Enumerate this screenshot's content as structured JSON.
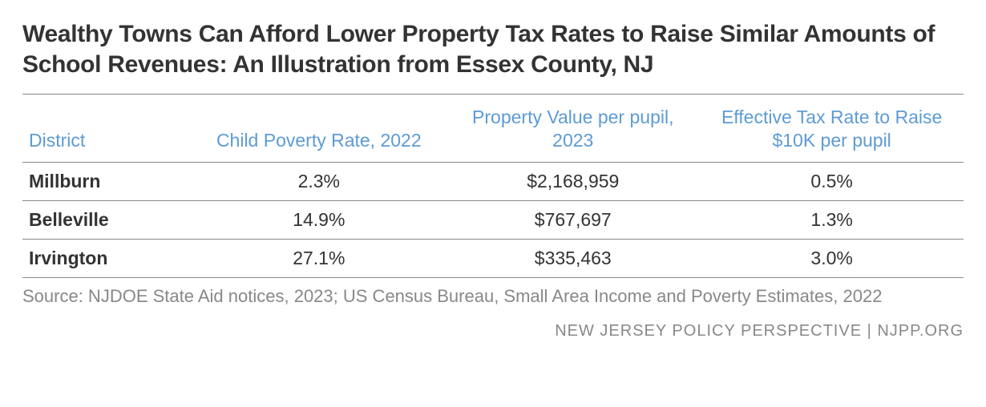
{
  "title": "Wealthy Towns Can Afford Lower Property Tax Rates to Raise Similar Amounts of School Revenues: An Illustration from Essex County, NJ",
  "table": {
    "columns": [
      {
        "key": "district",
        "label": "District",
        "align": "left"
      },
      {
        "key": "poverty",
        "label": "Child Poverty Rate, 2022",
        "align": "center"
      },
      {
        "key": "propval",
        "label": "Property Value per pupil, 2023",
        "align": "center"
      },
      {
        "key": "taxrate",
        "label": "Effective Tax Rate to Raise $10K per pupil",
        "align": "center"
      }
    ],
    "rows": [
      {
        "district": "Millburn",
        "poverty": "2.3%",
        "propval": "$2,168,959",
        "taxrate": "0.5%"
      },
      {
        "district": "Belleville",
        "poverty": "14.9%",
        "propval": "$767,697",
        "taxrate": "1.3%"
      },
      {
        "district": "Irvington",
        "poverty": "27.1%",
        "propval": "$335,463",
        "taxrate": "3.0%"
      }
    ],
    "header_color": "#5d9bd4",
    "header_fontsize": 23,
    "row_fontsize": 23,
    "border_color": "#888888",
    "district_fontweight": 700
  },
  "source": "Source:  NJDOE State Aid notices, 2023; US Census Bureau, Small Area Income and Poverty Estimates, 2022",
  "attribution": "NEW JERSEY POLICY PERSPECTIVE | NJPP.ORG",
  "colors": {
    "title": "#333333",
    "header": "#5d9bd4",
    "body_text": "#333333",
    "muted": "#888888",
    "background": "#ffffff"
  },
  "typography": {
    "title_fontsize": 30,
    "title_fontweight": 700,
    "source_fontsize": 22,
    "attribution_fontsize": 20
  }
}
